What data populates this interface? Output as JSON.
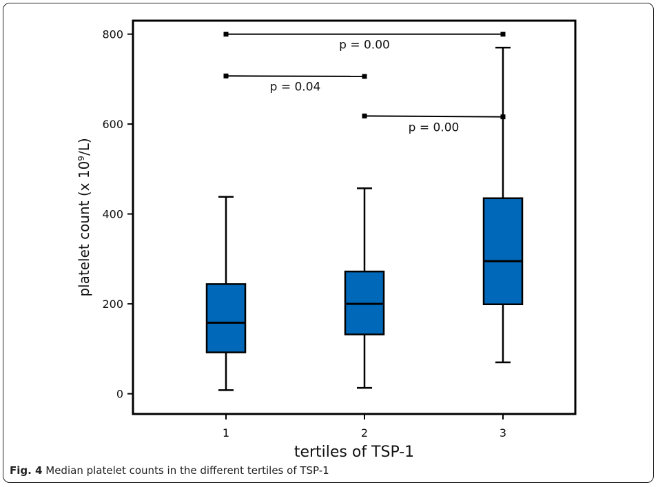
{
  "caption": {
    "label": "Fig. 4",
    "text": "Median platelet counts in the different tertiles of TSP-1"
  },
  "chart_data": {
    "type": "boxplot",
    "xlabel": "tertiles of TSP-1",
    "ylabel_main": "platelet count (x 10",
    "ylabel_sup": "9",
    "ylabel_end": "/L)",
    "ylim": [
      -45,
      830
    ],
    "yticks": [
      0,
      200,
      400,
      600,
      800
    ],
    "categories": [
      "1",
      "2",
      "3"
    ],
    "box_color": "#0068b8",
    "boxes": [
      {
        "category": "1",
        "min": 8,
        "q1": 92,
        "median": 158,
        "q3": 244,
        "max": 438
      },
      {
        "category": "2",
        "min": 13,
        "q1": 132,
        "median": 200,
        "q3": 272,
        "max": 457
      },
      {
        "category": "3",
        "min": 70,
        "q1": 199,
        "median": 295,
        "q3": 435,
        "max": 770
      }
    ],
    "comparisons": [
      {
        "from": "1",
        "to": "3",
        "y_left": 800,
        "y_right": 800,
        "label": "p = 0.00",
        "label_y": 777
      },
      {
        "from": "1",
        "to": "2",
        "y_left": 707,
        "y_right": 706,
        "label": "p = 0.04",
        "label_y": 684
      },
      {
        "from": "2",
        "to": "3",
        "y_left": 618,
        "y_right": 616,
        "label": "p = 0.00",
        "label_y": 593
      }
    ]
  }
}
